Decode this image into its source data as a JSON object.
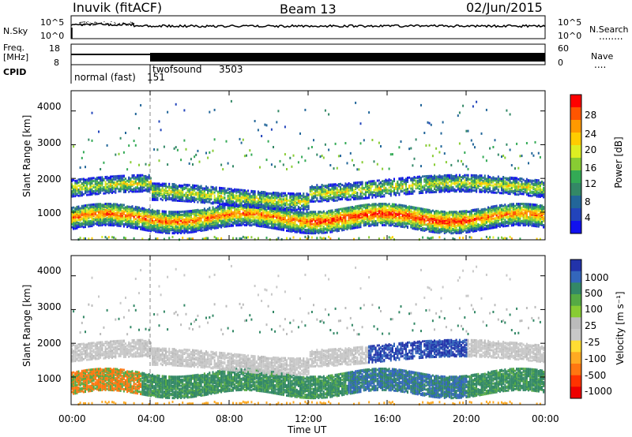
{
  "header": {
    "station": "Inuvik (fitACF)",
    "beam": "Beam 13",
    "date": "02/Jun/2015"
  },
  "panels": {
    "nsky_label": "N.Sky",
    "nsearch_label": "N.Search",
    "nsearch_dots": "........",
    "freq_label": "Freq.",
    "freq_unit": "[MHz]",
    "nave_label": "Nave",
    "nave_dots": "....",
    "cpid_label": "CPID",
    "nsky_ticks": [
      "10^5",
      "10^0"
    ],
    "nsearch_ticks": [
      "10^5",
      "10^0"
    ],
    "freq_ticks": [
      "18",
      "8"
    ],
    "nave_ticks": [
      "60",
      "0"
    ]
  },
  "cpid": {
    "segments": [
      {
        "name": "normal (fast)",
        "id": "151",
        "start": 0,
        "end": 4
      },
      {
        "name": "twofsound",
        "id": "3503",
        "start": 4,
        "end": 24
      }
    ]
  },
  "power_scale": {
    "label": "Power [dB]",
    "ticks": [
      "28",
      "24",
      "20",
      "16",
      "12",
      "8",
      "4"
    ],
    "colors": [
      "#ff0000",
      "#ff5500",
      "#ff9900",
      "#ffcc00",
      "#ddee22",
      "#88cc33",
      "#33aa55",
      "#338866",
      "#226699",
      "#2244bb",
      "#1111ee"
    ]
  },
  "velocity_scale": {
    "label": "Velocity [m s⁻¹]",
    "ticks": [
      "1000",
      "500",
      "100",
      "25",
      "-25",
      "-100",
      "-500",
      "-1000"
    ],
    "colors": [
      "#2233aa",
      "#3366bb",
      "#338866",
      "#55aa44",
      "#88cc33",
      "#bbbbbb",
      "#c8c8c8",
      "#ffdd33",
      "#ffaa22",
      "#ff7711",
      "#ff3300",
      "#ee0000"
    ]
  },
  "chart_data": {
    "type": "heatmap",
    "xlabel": "Time UT",
    "ylabel": "Slant Range [km]",
    "x_ticks": [
      "00:00",
      "04:00",
      "08:00",
      "12:00",
      "16:00",
      "20:00",
      "00:00"
    ],
    "y_ticks": [
      "1000",
      "2000",
      "3000",
      "4000"
    ],
    "xlim_hours": [
      0,
      24
    ],
    "ylim_km": [
      180,
      4600
    ],
    "panels": [
      "Power [dB]",
      "Velocity [m s⁻¹]"
    ]
  }
}
